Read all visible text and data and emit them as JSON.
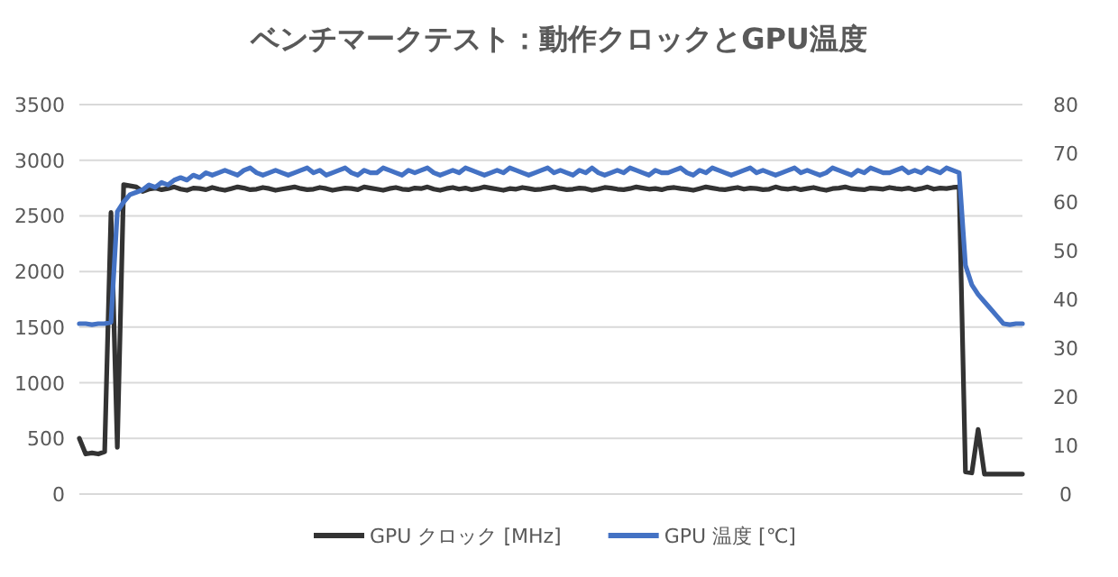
{
  "chart_data": {
    "type": "line",
    "title": "ベンチマークテスト：動作クロックとGPU温度",
    "categories": [
      null,
      null,
      null,
      null,
      null,
      null,
      null,
      null,
      null,
      null,
      null,
      null,
      null,
      null,
      null,
      null,
      null,
      null,
      null,
      null,
      null,
      null,
      null,
      null,
      null,
      null,
      null,
      null,
      null,
      null,
      null,
      null,
      null,
      null,
      null,
      null,
      null,
      null,
      null,
      null,
      null,
      null,
      null,
      null,
      null,
      null,
      null,
      null,
      null,
      null,
      null,
      null,
      null,
      null,
      null,
      null,
      null,
      null,
      null,
      null,
      null,
      null,
      null,
      null,
      null,
      null,
      null,
      null,
      null,
      null,
      null,
      null,
      null,
      null,
      null,
      null,
      null,
      null,
      null,
      null,
      null,
      null,
      null,
      null,
      null,
      null,
      null,
      null,
      null,
      null,
      null,
      null,
      null,
      null,
      null,
      null,
      null,
      null,
      null,
      null,
      null,
      null,
      null,
      null,
      null,
      null,
      null,
      null,
      null,
      null,
      null,
      null,
      null,
      null,
      null,
      null,
      null,
      null,
      null,
      null,
      null,
      null,
      null,
      null,
      null,
      null,
      null,
      null,
      null,
      null,
      null,
      null,
      null,
      null,
      null,
      null,
      null,
      null,
      null,
      null,
      null,
      null,
      null,
      null,
      null,
      null,
      null,
      null,
      null,
      null
    ],
    "series": [
      {
        "name": "GPU クロック [MHz]",
        "color": "#333333",
        "values": [
          500,
          360,
          370,
          360,
          380,
          2530,
          420,
          2780,
          2770,
          2760,
          2720,
          2740,
          2750,
          2735,
          2745,
          2760,
          2740,
          2730,
          2750,
          2745,
          2735,
          2755,
          2740,
          2730,
          2745,
          2760,
          2750,
          2735,
          2740,
          2755,
          2745,
          2730,
          2740,
          2750,
          2760,
          2745,
          2735,
          2740,
          2755,
          2745,
          2730,
          2740,
          2750,
          2745,
          2735,
          2760,
          2750,
          2740,
          2730,
          2745,
          2755,
          2740,
          2735,
          2750,
          2745,
          2760,
          2740,
          2730,
          2745,
          2755,
          2740,
          2750,
          2735,
          2745,
          2760,
          2750,
          2740,
          2730,
          2745,
          2740,
          2755,
          2745,
          2735,
          2740,
          2750,
          2760,
          2745,
          2735,
          2740,
          2750,
          2745,
          2730,
          2740,
          2755,
          2750,
          2740,
          2735,
          2745,
          2760,
          2750,
          2740,
          2745,
          2735,
          2750,
          2755,
          2745,
          2740,
          2730,
          2745,
          2760,
          2750,
          2740,
          2735,
          2745,
          2755,
          2740,
          2750,
          2745,
          2735,
          2740,
          2760,
          2745,
          2740,
          2750,
          2735,
          2745,
          2755,
          2740,
          2730,
          2745,
          2750,
          2760,
          2745,
          2740,
          2735,
          2750,
          2745,
          2740,
          2755,
          2745,
          2740,
          2750,
          2735,
          2745,
          2760,
          2740,
          2750,
          2745,
          2755,
          2760,
          200,
          190,
          580,
          180,
          180,
          180,
          180,
          180,
          180,
          180
        ]
      },
      {
        "name": "GPU 温度 [℃]",
        "color": "#4472c4",
        "axis": "y2",
        "values": [
          35,
          35,
          34.8,
          35,
          35,
          35.3,
          58,
          60,
          61.5,
          62,
          62.5,
          63.5,
          63,
          64,
          63.5,
          64.5,
          65,
          64.5,
          65.5,
          65,
          66,
          65.5,
          66,
          66.5,
          66,
          65.5,
          66.5,
          67,
          66,
          65.5,
          66,
          66.5,
          66,
          65.5,
          66,
          66.5,
          67,
          66,
          66.5,
          65.5,
          66,
          66.5,
          67,
          66,
          65.5,
          66.5,
          66,
          66,
          67,
          66.5,
          66,
          65.5,
          66.5,
          66,
          66.5,
          67,
          66,
          65.5,
          66,
          66.5,
          66,
          67,
          66.5,
          66,
          65.5,
          66,
          66.5,
          66,
          67,
          66.5,
          66,
          65.5,
          66,
          66.5,
          67,
          66,
          66.5,
          66,
          65.5,
          66.5,
          66,
          67,
          66,
          65.5,
          66,
          66.5,
          66,
          67,
          66.5,
          66,
          65.5,
          66.5,
          66,
          66,
          66.5,
          67,
          66,
          65.5,
          66.5,
          66,
          67,
          66.5,
          66,
          65.5,
          66,
          66.5,
          67,
          66,
          66.5,
          66,
          65.5,
          66,
          66.5,
          67,
          66,
          66.5,
          66,
          65.5,
          66,
          67,
          66.5,
          66,
          65.5,
          66.5,
          66,
          67,
          66.5,
          66,
          66,
          66.5,
          67,
          66,
          66.5,
          66,
          67,
          66.5,
          66,
          67,
          66.5,
          66,
          47,
          43,
          41,
          39.5,
          38,
          36.5,
          35,
          34.8,
          35,
          35
        ]
      }
    ],
    "ylim": [
      0,
      3500
    ],
    "yticks": [
      0,
      500,
      1000,
      1500,
      2000,
      2500,
      3000,
      3500
    ],
    "y2lim": [
      0,
      80
    ],
    "y2ticks": [
      0,
      10,
      20,
      30,
      40,
      50,
      60,
      70,
      80
    ],
    "grid": "y",
    "legend": "bottom"
  }
}
